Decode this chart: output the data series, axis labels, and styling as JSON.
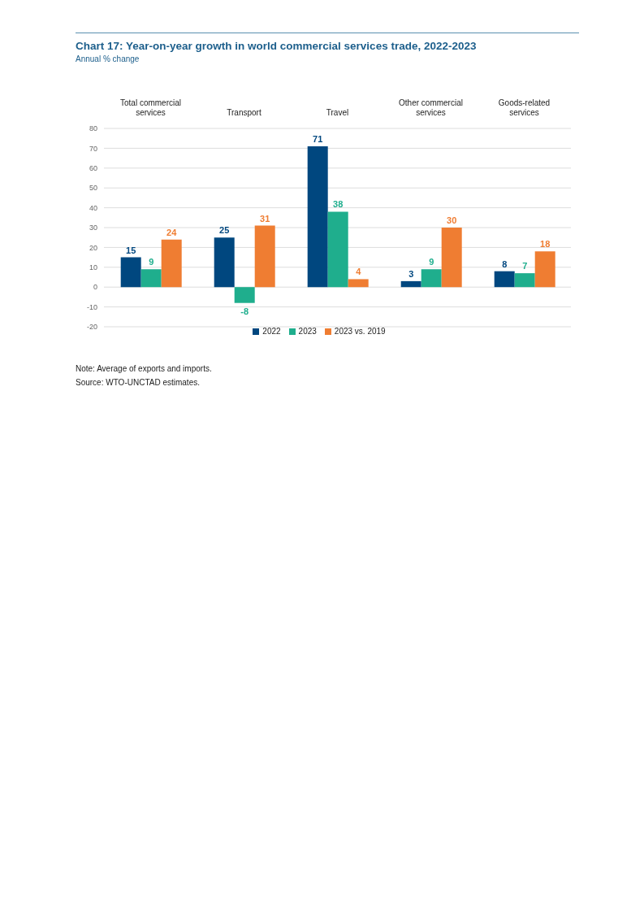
{
  "chart_data": {
    "type": "bar",
    "title": "Chart 17: Year-on-year growth in world commercial services trade, 2022-2023",
    "subtitle": "Annual % change",
    "categories": [
      "Total commercial services",
      "Transport",
      "Travel",
      "Other commercial services",
      "Goods-related services"
    ],
    "series": [
      {
        "name": "2022",
        "color": "#00477f",
        "values": [
          15,
          25,
          71,
          3,
          8
        ]
      },
      {
        "name": "2023",
        "color": "#1fae8d",
        "values": [
          9,
          -8,
          38,
          9,
          7
        ]
      },
      {
        "name": "2023 vs. 2019",
        "color": "#ef7d32",
        "values": [
          24,
          31,
          4,
          30,
          18
        ]
      }
    ],
    "ylim": [
      -20,
      80
    ],
    "yticks": [
      -20,
      -10,
      0,
      10,
      20,
      30,
      40,
      50,
      60,
      70,
      80
    ],
    "grid": "y",
    "legend": "bottom",
    "data_labels": true,
    "annotations": [
      "Note: Average of exports and imports.",
      "Source: WTO-UNCTAD estimates."
    ]
  }
}
